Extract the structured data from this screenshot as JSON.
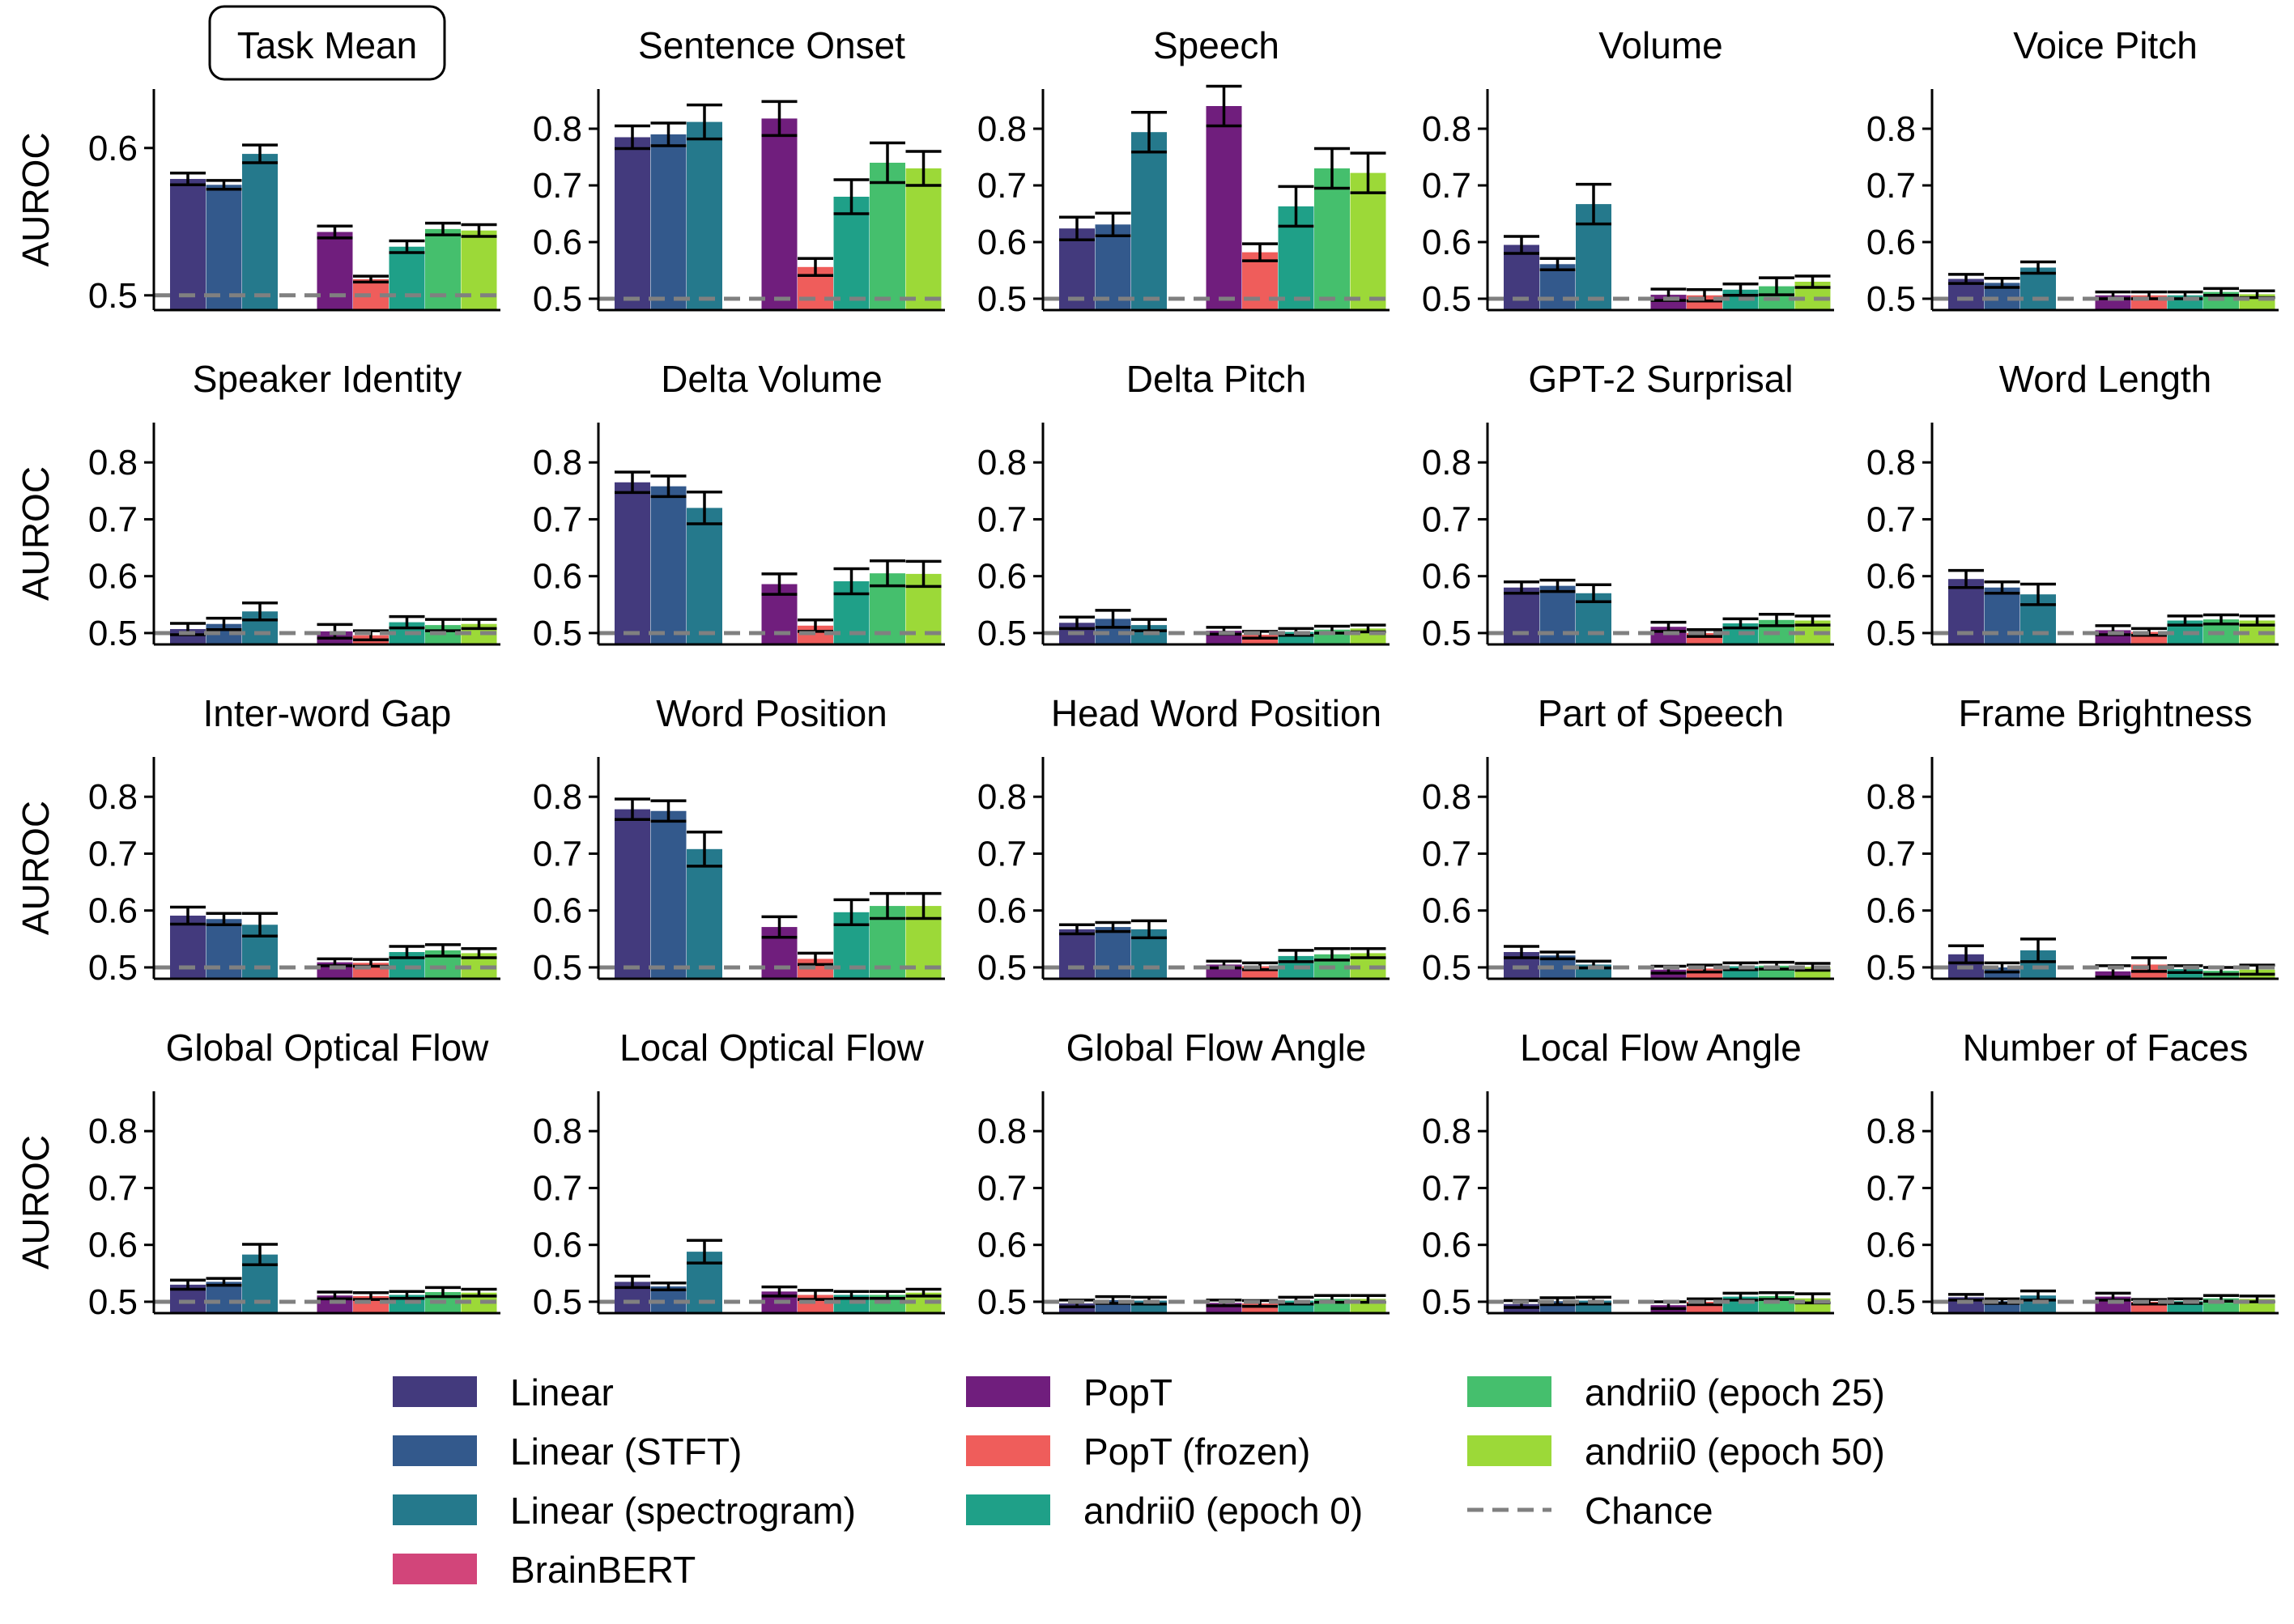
{
  "chart_data": {
    "type": "bar",
    "ylabel": "AUROC",
    "series": [
      {
        "name": "Linear",
        "color": "#433a7d"
      },
      {
        "name": "Linear (STFT)",
        "color": "#33598c"
      },
      {
        "name": "Linear (spectrogram)",
        "color": "#25798c"
      },
      {
        "name": "BrainBERT",
        "color": "#d2457a"
      },
      {
        "name": "PopT",
        "color": "#701e7d"
      },
      {
        "name": "PopT (frozen)",
        "color": "#ef5d5b"
      },
      {
        "name": "andrii0 (epoch 0)",
        "color": "#1fa088"
      },
      {
        "name": "andrii0 (epoch 25)",
        "color": "#45bf6d"
      },
      {
        "name": "andrii0 (epoch 50)",
        "color": "#9cd938"
      }
    ],
    "chance": {
      "label": "Chance",
      "value": 0.5,
      "color": "#808080"
    },
    "panels": [
      {
        "title": "Task Mean",
        "boxed": true,
        "ylim": [
          0.49,
          0.64
        ],
        "yticks": [
          "0.5",
          "0.6"
        ],
        "values": [
          0.579,
          0.575,
          0.596,
          null,
          0.543,
          0.511,
          0.533,
          0.545,
          0.544
        ],
        "errors": [
          0.004,
          0.003,
          0.006,
          null,
          0.004,
          0.002,
          0.004,
          0.004,
          0.004
        ]
      },
      {
        "title": "Sentence Onset",
        "ylim": [
          0.48,
          0.87
        ],
        "yticks": [
          "0.5",
          "0.6",
          "0.7",
          "0.8"
        ],
        "values": [
          0.785,
          0.79,
          0.812,
          null,
          0.818,
          0.556,
          0.68,
          0.74,
          0.73
        ],
        "errors": [
          0.02,
          0.02,
          0.03,
          null,
          0.03,
          0.015,
          0.03,
          0.035,
          0.03
        ]
      },
      {
        "title": "Speech",
        "ylim": [
          0.48,
          0.87
        ],
        "yticks": [
          "0.5",
          "0.6",
          "0.7",
          "0.8"
        ],
        "values": [
          0.624,
          0.631,
          0.794,
          null,
          0.84,
          0.582,
          0.663,
          0.73,
          0.722
        ],
        "errors": [
          0.02,
          0.02,
          0.035,
          null,
          0.035,
          0.015,
          0.035,
          0.035,
          0.035
        ]
      },
      {
        "title": "Volume",
        "ylim": [
          0.48,
          0.87
        ],
        "yticks": [
          "0.5",
          "0.6",
          "0.7",
          "0.8"
        ],
        "values": [
          0.595,
          0.561,
          0.667,
          null,
          0.507,
          0.506,
          0.516,
          0.522,
          0.53
        ],
        "errors": [
          0.015,
          0.01,
          0.035,
          null,
          0.01,
          0.01,
          0.01,
          0.015,
          0.01
        ]
      },
      {
        "title": "Voice Pitch",
        "ylim": [
          0.48,
          0.87
        ],
        "yticks": [
          "0.5",
          "0.6",
          "0.7",
          "0.8"
        ],
        "values": [
          0.535,
          0.528,
          0.555,
          null,
          0.506,
          0.506,
          0.506,
          0.512,
          0.508
        ],
        "errors": [
          0.008,
          0.008,
          0.01,
          null,
          0.006,
          0.006,
          0.006,
          0.006,
          0.006
        ]
      },
      {
        "title": "Speaker Identity",
        "ylim": [
          0.48,
          0.87
        ],
        "yticks": [
          "0.5",
          "0.6",
          "0.7",
          "0.8"
        ],
        "values": [
          0.507,
          0.516,
          0.538,
          null,
          0.503,
          0.496,
          0.519,
          0.514,
          0.516
        ],
        "errors": [
          0.01,
          0.01,
          0.015,
          null,
          0.012,
          0.008,
          0.01,
          0.01,
          0.008
        ]
      },
      {
        "title": "Delta Volume",
        "ylim": [
          0.48,
          0.87
        ],
        "yticks": [
          "0.5",
          "0.6",
          "0.7",
          "0.8"
        ],
        "values": [
          0.765,
          0.758,
          0.72,
          null,
          0.586,
          0.513,
          0.591,
          0.605,
          0.604
        ],
        "errors": [
          0.018,
          0.018,
          0.028,
          null,
          0.018,
          0.01,
          0.022,
          0.022,
          0.022
        ]
      },
      {
        "title": "Delta Pitch",
        "ylim": [
          0.48,
          0.87
        ],
        "yticks": [
          "0.5",
          "0.6",
          "0.7",
          "0.8"
        ],
        "values": [
          0.518,
          0.525,
          0.514,
          null,
          0.504,
          0.497,
          0.502,
          0.506,
          0.508
        ],
        "errors": [
          0.01,
          0.015,
          0.01,
          null,
          0.006,
          0.006,
          0.006,
          0.006,
          0.006
        ]
      },
      {
        "title": "GPT-2 Surprisal",
        "ylim": [
          0.48,
          0.87
        ],
        "yticks": [
          "0.5",
          "0.6",
          "0.7",
          "0.8"
        ],
        "values": [
          0.58,
          0.583,
          0.57,
          null,
          0.511,
          0.5,
          0.517,
          0.523,
          0.522
        ],
        "errors": [
          0.01,
          0.01,
          0.015,
          null,
          0.008,
          0.006,
          0.008,
          0.01,
          0.008
        ]
      },
      {
        "title": "Word Length",
        "ylim": [
          0.48,
          0.87
        ],
        "yticks": [
          "0.5",
          "0.6",
          "0.7",
          "0.8"
        ],
        "values": [
          0.595,
          0.58,
          0.568,
          null,
          0.505,
          0.502,
          0.522,
          0.524,
          0.522
        ],
        "errors": [
          0.015,
          0.01,
          0.018,
          null,
          0.008,
          0.006,
          0.008,
          0.008,
          0.008
        ]
      },
      {
        "title": "Inter-word Gap",
        "ylim": [
          0.48,
          0.87
        ],
        "yticks": [
          "0.5",
          "0.6",
          "0.7",
          "0.8"
        ],
        "values": [
          0.591,
          0.585,
          0.575,
          null,
          0.509,
          0.508,
          0.527,
          0.53,
          0.525
        ],
        "errors": [
          0.015,
          0.01,
          0.02,
          null,
          0.006,
          0.006,
          0.01,
          0.01,
          0.008
        ]
      },
      {
        "title": "Word Position",
        "ylim": [
          0.48,
          0.87
        ],
        "yticks": [
          "0.5",
          "0.6",
          "0.7",
          "0.8"
        ],
        "values": [
          0.778,
          0.775,
          0.708,
          null,
          0.571,
          0.515,
          0.597,
          0.608,
          0.608
        ],
        "errors": [
          0.018,
          0.018,
          0.03,
          null,
          0.018,
          0.01,
          0.022,
          0.022,
          0.022
        ]
      },
      {
        "title": "Head Word Position",
        "ylim": [
          0.48,
          0.87
        ],
        "yticks": [
          "0.5",
          "0.6",
          "0.7",
          "0.8"
        ],
        "values": [
          0.567,
          0.571,
          0.567,
          null,
          0.505,
          0.502,
          0.52,
          0.523,
          0.525
        ],
        "errors": [
          0.008,
          0.008,
          0.015,
          null,
          0.006,
          0.006,
          0.01,
          0.01,
          0.008
        ]
      },
      {
        "title": "Part of Speech",
        "ylim": [
          0.48,
          0.87
        ],
        "yticks": [
          "0.5",
          "0.6",
          "0.7",
          "0.8"
        ],
        "values": [
          0.527,
          0.521,
          0.505,
          null,
          0.496,
          0.498,
          0.502,
          0.503,
          0.501
        ],
        "errors": [
          0.01,
          0.006,
          0.006,
          null,
          0.006,
          0.006,
          0.006,
          0.006,
          0.006
        ]
      },
      {
        "title": "Frame Brightness",
        "ylim": [
          0.48,
          0.87
        ],
        "yticks": [
          "0.5",
          "0.6",
          "0.7",
          "0.8"
        ],
        "values": [
          0.523,
          0.5,
          0.53,
          null,
          0.493,
          0.505,
          0.497,
          0.494,
          0.496
        ],
        "errors": [
          0.015,
          0.008,
          0.02,
          null,
          0.01,
          0.012,
          0.006,
          0.006,
          0.008
        ]
      },
      {
        "title": "Global Optical Flow",
        "ylim": [
          0.48,
          0.87
        ],
        "yticks": [
          "0.5",
          "0.6",
          "0.7",
          "0.8"
        ],
        "values": [
          0.53,
          0.535,
          0.583,
          null,
          0.511,
          0.51,
          0.512,
          0.517,
          0.516
        ],
        "errors": [
          0.008,
          0.006,
          0.018,
          null,
          0.006,
          0.006,
          0.006,
          0.008,
          0.006
        ]
      },
      {
        "title": "Local Optical Flow",
        "ylim": [
          0.48,
          0.87
        ],
        "yticks": [
          "0.5",
          "0.6",
          "0.7",
          "0.8"
        ],
        "values": [
          0.535,
          0.527,
          0.588,
          null,
          0.518,
          0.512,
          0.512,
          0.512,
          0.516
        ],
        "errors": [
          0.01,
          0.006,
          0.02,
          null,
          0.008,
          0.008,
          0.006,
          0.006,
          0.006
        ]
      },
      {
        "title": "Global Flow Angle",
        "ylim": [
          0.48,
          0.87
        ],
        "yticks": [
          "0.5",
          "0.6",
          "0.7",
          "0.8"
        ],
        "values": [
          0.497,
          0.503,
          0.502,
          null,
          0.498,
          0.497,
          0.502,
          0.505,
          0.505
        ],
        "errors": [
          0.006,
          0.006,
          0.006,
          null,
          0.005,
          0.005,
          0.006,
          0.006,
          0.006
        ]
      },
      {
        "title": "Local Flow Angle",
        "ylim": [
          0.48,
          0.87
        ],
        "yticks": [
          "0.5",
          "0.6",
          "0.7",
          "0.8"
        ],
        "values": [
          0.496,
          0.501,
          0.502,
          null,
          0.494,
          0.5,
          0.509,
          0.51,
          0.506
        ],
        "errors": [
          0.006,
          0.006,
          0.006,
          null,
          0.006,
          0.005,
          0.006,
          0.006,
          0.008
        ]
      },
      {
        "title": "Number of Faces",
        "ylim": [
          0.48,
          0.87
        ],
        "yticks": [
          "0.5",
          "0.6",
          "0.7",
          "0.8"
        ],
        "values": [
          0.508,
          0.501,
          0.511,
          null,
          0.509,
          0.5,
          0.501,
          0.506,
          0.505
        ],
        "errors": [
          0.005,
          0.004,
          0.008,
          null,
          0.006,
          0.004,
          0.004,
          0.005,
          0.005
        ]
      }
    ]
  }
}
